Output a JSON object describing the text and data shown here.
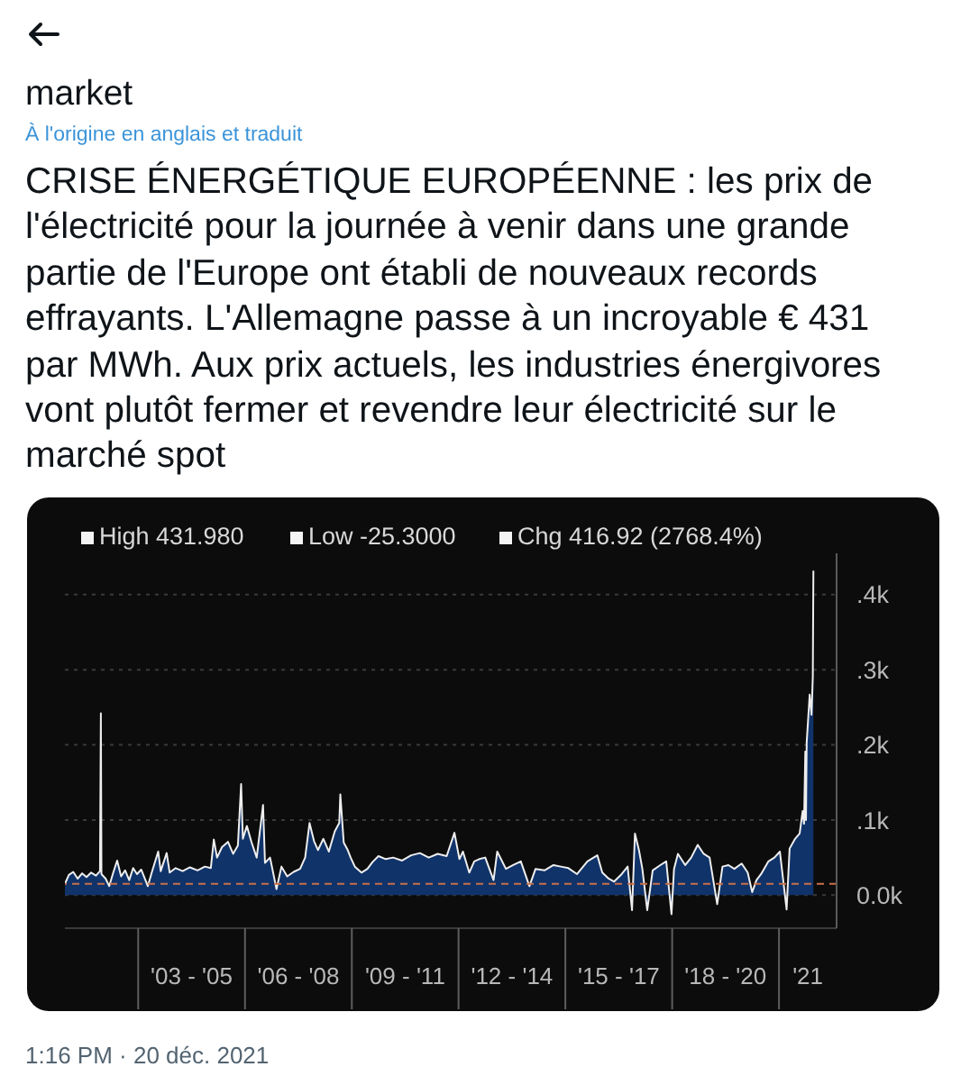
{
  "chart_data": {
    "type": "area",
    "title": "CRISE ÉNERGÉTIQUE EUROPÉENNE : les prix de l'électricité pour la journée à venir dans une grande partie de l'Europe ont établi de nouveaux records effrayants. L'Allemagne passe à un incroyable € 431 par MWh. Aux prix actuels, les industries énergivores vont plutôt fermer et revendre leur électricité sur le marché spot",
    "annotations": [
      "market",
      "À l'origine en anglais et traduit",
      "High 431.980",
      "Low -25.3000",
      "Chg 416.92 (2768.4%)",
      "1:16 PM · 20 déc. 2021"
    ],
    "x": [
      "2000-12-10",
      "2001-01-20",
      "2001-03-05",
      "2001-04-20",
      "2001-06-05",
      "2001-07-20",
      "2001-09-05",
      "2001-10-25",
      "2001-12-05",
      "2001-12-14",
      "2001-12-20",
      "2002-02-01",
      "2002-03-10",
      "2002-04-20",
      "2002-05-30",
      "2002-07-10",
      "2002-08-20",
      "2002-10-01",
      "2002-11-10",
      "2002-12-20",
      "2003-02-01",
      "2003-04-10",
      "2003-05-20",
      "2003-07-25",
      "2003-08-20",
      "2003-10-20",
      "2003-11-20",
      "2004-01-20",
      "2004-04-01",
      "2004-06-15",
      "2004-09-01",
      "2004-11-15",
      "2005-01-15",
      "2005-02-15",
      "2005-03-20",
      "2005-05-10",
      "2005-07-10",
      "2005-09-01",
      "2005-10-20",
      "2005-11-22",
      "2005-12-10",
      "2006-01-20",
      "2006-03-10",
      "2006-05-01",
      "2006-07-05",
      "2006-07-25",
      "2006-09-15",
      "2006-11-20",
      "2007-01-10",
      "2007-03-10",
      "2007-05-15",
      "2007-07-20",
      "2007-09-10",
      "2007-10-25",
      "2007-12-10",
      "2008-01-20",
      "2008-03-15",
      "2008-05-10",
      "2008-07-10",
      "2008-08-25",
      "2008-09-05",
      "2008-10-10",
      "2008-11-20",
      "2008-12-20",
      "2009-02-01",
      "2009-04-10",
      "2009-06-10",
      "2009-08-01",
      "2009-10-01",
      "2009-12-15",
      "2010-03-01",
      "2010-06-01",
      "2010-09-01",
      "2010-12-01",
      "2011-03-01",
      "2011-06-01",
      "2011-09-01",
      "2011-11-20",
      "2012-01-10",
      "2012-02-15",
      "2012-04-20",
      "2012-06-10",
      "2012-08-01",
      "2012-10-01",
      "2012-12-25",
      "2013-02-01",
      "2013-05-01",
      "2013-07-15",
      "2013-10-01",
      "2013-12-28",
      "2014-03-01",
      "2014-06-01",
      "2014-09-01",
      "2014-11-15",
      "2015-02-01",
      "2015-05-01",
      "2015-08-15",
      "2015-11-25",
      "2016-01-15",
      "2016-03-20",
      "2016-05-15",
      "2016-08-01",
      "2016-10-01",
      "2016-11-15",
      "2016-12-15",
      "2017-01-25",
      "2017-03-01",
      "2017-04-20",
      "2017-06-15",
      "2017-09-01",
      "2017-11-01",
      "2017-12-25",
      "2018-01-20",
      "2018-03-01",
      "2018-05-15",
      "2018-07-15",
      "2018-09-20",
      "2018-11-20",
      "2019-01-20",
      "2019-04-08",
      "2019-06-01",
      "2019-08-01",
      "2019-10-01",
      "2019-12-15",
      "2020-02-15",
      "2020-04-01",
      "2020-05-15",
      "2020-07-01",
      "2020-09-15",
      "2020-11-15",
      "2021-01-10",
      "2021-03-20",
      "2021-04-20",
      "2021-06-15",
      "2021-08-01",
      "2021-09-01",
      "2021-09-15",
      "2021-09-28",
      "2021-10-05",
      "2021-10-12",
      "2021-11-12",
      "2021-12-01",
      "2021-12-14",
      "2021-12-20"
    ],
    "values": [
      15,
      27,
      31,
      22,
      29,
      24,
      30,
      26,
      32,
      242,
      28,
      22,
      12,
      30,
      46,
      25,
      33,
      20,
      36,
      28,
      34,
      12,
      30,
      58,
      32,
      56,
      30,
      36,
      32,
      37,
      33,
      38,
      36,
      74,
      50,
      64,
      71,
      55,
      66,
      148,
      75,
      92,
      70,
      50,
      120,
      43,
      50,
      8,
      38,
      25,
      31,
      35,
      50,
      96,
      72,
      60,
      75,
      58,
      85,
      96,
      134,
      70,
      60,
      50,
      38,
      30,
      35,
      44,
      52,
      48,
      50,
      46,
      53,
      56,
      50,
      55,
      52,
      83,
      48,
      58,
      30,
      45,
      48,
      50,
      20,
      58,
      35,
      40,
      45,
      12,
      35,
      33,
      40,
      38,
      36,
      28,
      45,
      53,
      30,
      22,
      18,
      28,
      38,
      -20,
      82,
      60,
      35,
      -20,
      33,
      40,
      45,
      -25.3,
      35,
      55,
      40,
      50,
      67,
      55,
      50,
      -12,
      38,
      40,
      35,
      42,
      30,
      4,
      20,
      28,
      45,
      50,
      58,
      -19,
      62,
      75,
      82,
      112,
      95,
      191,
      100,
      203,
      267,
      240,
      291,
      431.98
    ],
    "color": "#10336a",
    "xlim": [
      "2000-12-10",
      "2022-08-15"
    ],
    "xticks": [
      {
        "value": "2003-01-01",
        "label": null
      },
      {
        "value": "2004-07-02",
        "label": "'03 - '05"
      },
      {
        "value": "2006-01-01",
        "label": null
      },
      {
        "value": "2007-07-02",
        "label": "'06 - '08"
      },
      {
        "value": "2009-01-01",
        "label": null
      },
      {
        "value": "2010-07-02",
        "label": "'09 - '11"
      },
      {
        "value": "2012-01-01",
        "label": null
      },
      {
        "value": "2013-07-02",
        "label": "'12 - '14"
      },
      {
        "value": "2015-01-01",
        "label": null
      },
      {
        "value": "2016-07-02",
        "label": "'15 - '17"
      },
      {
        "value": "2018-01-01",
        "label": null
      },
      {
        "value": "2019-07-02",
        "label": "'18 - '20"
      },
      {
        "value": "2021-01-01",
        "label": null
      },
      {
        "value": "2021-10-24",
        "label": "'21"
      }
    ],
    "ylim": [
      -44,
      455
    ],
    "yticks": [
      {
        "value": 0,
        "label": "0.0k"
      },
      {
        "value": 100,
        "label": ".1k"
      },
      {
        "value": 200,
        "label": ".2k"
      },
      {
        "value": 300,
        "label": ".3k"
      },
      {
        "value": 400,
        "label": ".4k"
      }
    ],
    "grid": "y",
    "ref_lines": [
      {
        "axis": "y",
        "value": 15,
        "color": "#c8704a",
        "line_style": "dashed"
      }
    ]
  }
}
